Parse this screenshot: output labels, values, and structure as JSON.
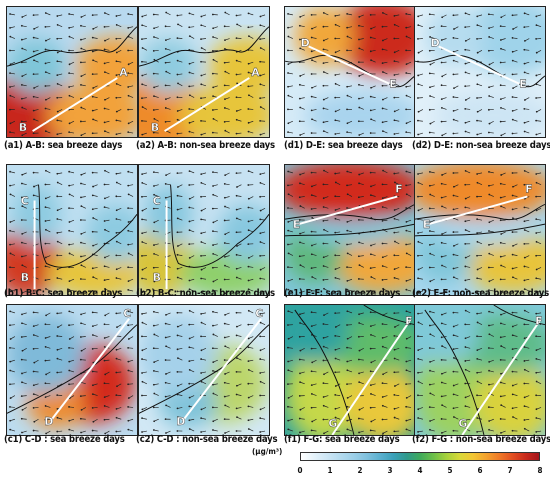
{
  "panels": [
    {
      "id": "a1",
      "caption": "(a1) A-B: sea breeze days",
      "start": "A",
      "end": "B",
      "colors": [
        "#b8d9ef",
        "#7fc6d9",
        "#f2a23a",
        "#c8281b"
      ],
      "cls": "ab"
    },
    {
      "id": "a2",
      "caption": "(a2) A-B: non-sea breeze days",
      "start": "A",
      "end": "B",
      "colors": [
        "#c9e3f2",
        "#8fcce0",
        "#e7c53a",
        "#ee8b2c"
      ],
      "cls": "ab"
    },
    {
      "id": "d1",
      "caption": "(d1) D-E: sea breeze days",
      "start": "D",
      "end": "E",
      "colors": [
        "#d6ebf7",
        "#a9d4ee",
        "#f1a73a",
        "#cc2b1e"
      ],
      "cls": "de"
    },
    {
      "id": "d2",
      "caption": "(d2) D-E: non-sea breeze days",
      "start": "D",
      "end": "E",
      "colors": [
        "#e1f0f9",
        "#cde5f4",
        "#b6dcef",
        "#9fd3ea"
      ],
      "cls": "de"
    },
    {
      "id": "b1",
      "caption": "(b1) B-C: sea breeze days",
      "start": "C",
      "end": "B",
      "colors": [
        "#bfdff1",
        "#8dcbe1",
        "#e7c53a",
        "#d23a24"
      ],
      "cls": "bc"
    },
    {
      "id": "b2",
      "caption": "(b2) B-C: non-sea breeze days",
      "start": "C",
      "end": "B",
      "colors": [
        "#c7e2f2",
        "#87c8df",
        "#8fd06a",
        "#d8c43a"
      ],
      "cls": "bc"
    },
    {
      "id": "e1",
      "caption": "(e1) E-F: sea breeze days",
      "start": "E",
      "end": "F",
      "colors": [
        "#7fc6d9",
        "#5fb77a",
        "#f1a73a",
        "#d22b1e"
      ],
      "cls": "ef"
    },
    {
      "id": "e2",
      "caption": "(e2) E-F: non-sea breeze days",
      "start": "E",
      "end": "F",
      "colors": [
        "#a7d7ee",
        "#7fc6d9",
        "#e8c43a",
        "#ef8a2c"
      ],
      "cls": "ef"
    },
    {
      "id": "c1",
      "caption": "(c1) C-D : sea breeze days",
      "start": "C",
      "end": "D",
      "colors": [
        "#bcdcf0",
        "#7fbad9",
        "#ee8b2c",
        "#d3291c"
      ],
      "cls": "cd"
    },
    {
      "id": "c2",
      "caption": "(c2) C-D : non-sea breeze days",
      "start": "C",
      "end": "D",
      "colors": [
        "#d2e8f5",
        "#a5d1ea",
        "#7fc3d9",
        "#bcd66a"
      ],
      "cls": "cd"
    },
    {
      "id": "f1",
      "caption": "(f1) F-G: sea breeze days",
      "start": "F",
      "end": "G",
      "colors": [
        "#2fa3a0",
        "#5fbc6a",
        "#c5d84a",
        "#e9c83a"
      ],
      "cls": "fg"
    },
    {
      "id": "f2",
      "caption": "(f2) F-G : non-sea breeze days",
      "start": "F",
      "end": "G",
      "colors": [
        "#7fc9d8",
        "#5fbc8a",
        "#9cd160",
        "#d9d23c"
      ],
      "cls": "fg"
    }
  ],
  "colorbar": {
    "unit": "(μg/m³)",
    "ticks": [
      "0",
      "1",
      "2",
      "3",
      "4",
      "5",
      "6",
      "7",
      "8"
    ],
    "colors": [
      "#ffffff",
      "#e4f2fa",
      "#cde6f5",
      "#b4dbef",
      "#9ccfe8",
      "#7fc0dd",
      "#5bb0cf",
      "#3aa0b8",
      "#2f9a8c",
      "#3faa5c",
      "#6cbf4a",
      "#a6d13c",
      "#d8d93a",
      "#f2c634",
      "#f3a22e",
      "#ef7a28",
      "#e24f22",
      "#c92a1c",
      "#a5151b"
    ]
  }
}
